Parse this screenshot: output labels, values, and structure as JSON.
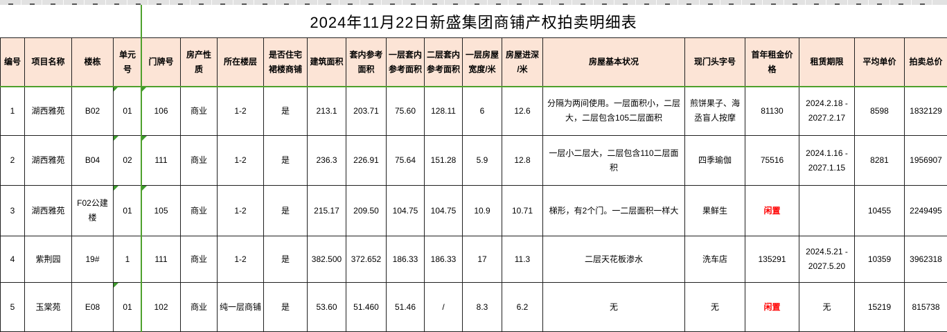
{
  "colors": {
    "header_background": "#fce4d6",
    "freeze_pane_line": "#4ea02c",
    "error_triangle": "#3f9a2e",
    "vacant_text": "#ff0000"
  },
  "title": "2024年11月22日新盛集团商铺产权拍卖明细表",
  "table": {
    "headers": [
      "编号",
      "项目名称",
      "楼栋",
      "单元号",
      "门牌号",
      "房产性质",
      "所在楼层",
      "是否住宅\n裙楼商铺",
      "建筑面积",
      "套内参考\n面积",
      "一层套内\n参考面积",
      "二层套内\n参考面积",
      "一层房屋\n宽度/米",
      "房屋进深\n/米",
      "房屋基本状况",
      "现门头字号",
      "首年租金价格",
      "租赁期限",
      "平均单价",
      "拍卖总价"
    ],
    "rows": [
      {
        "cells": [
          "1",
          "湖西雅苑",
          "B02",
          "01",
          "106",
          "商业",
          "1-2",
          "是",
          "213.1",
          "203.71",
          "75.60",
          "128.11",
          "6",
          "12.6",
          "分隔为两间使用。一层面积小，二层大，二层包含105二层面积",
          "煎饼果子、海丞盲人按摩",
          "81130",
          "2024.2.18 -\n2027.2.17",
          "8598",
          "1832129"
        ],
        "error_flag_cols": [
          3,
          4
        ],
        "red_cols": []
      },
      {
        "cells": [
          "2",
          "湖西雅苑",
          "B04",
          "02",
          "111",
          "商业",
          "1-2",
          "是",
          "236.3",
          "226.91",
          "75.64",
          "151.28",
          "5.9",
          "12.8",
          "一层小二层大，二层包含110二层面积",
          "四季瑜伽",
          "75516",
          "2024.1.16 -\n2027.1.15",
          "8281",
          "1956907"
        ],
        "error_flag_cols": [
          3,
          4
        ],
        "red_cols": []
      },
      {
        "cells": [
          "3",
          "湖西雅苑",
          "F02公建楼",
          "01",
          "105",
          "商业",
          "1-2",
          "是",
          "215.17",
          "209.50",
          "104.75",
          "104.75",
          "10.9",
          "10.71",
          "梯形，有2个门。一二层面积一样大",
          "果鲜生",
          "闲置",
          "",
          "10455",
          "2249495"
        ],
        "error_flag_cols": [
          3,
          4
        ],
        "red_cols": [
          16
        ]
      },
      {
        "cells": [
          "4",
          "紫荆园",
          "19#",
          "1",
          "111",
          "商业",
          "1-2",
          "是",
          "382.500",
          "372.652",
          "186.33",
          "186.33",
          "17",
          "11.3",
          "二层天花板渗水",
          "洗车店",
          "135291",
          "2024.5.21 -\n2027.5.20",
          "10359",
          "3962318"
        ],
        "error_flag_cols": [],
        "red_cols": []
      },
      {
        "cells": [
          "5",
          "玉棠苑",
          "E08",
          "01",
          "102",
          "商业",
          "纯一层商铺",
          "是",
          "53.60",
          "51.460",
          "51.46",
          "/",
          "8.3",
          "6.2",
          "无",
          "无",
          "闲置",
          "无",
          "15219",
          "815738"
        ],
        "error_flag_cols": [
          3
        ],
        "red_cols": [
          16
        ]
      }
    ]
  }
}
